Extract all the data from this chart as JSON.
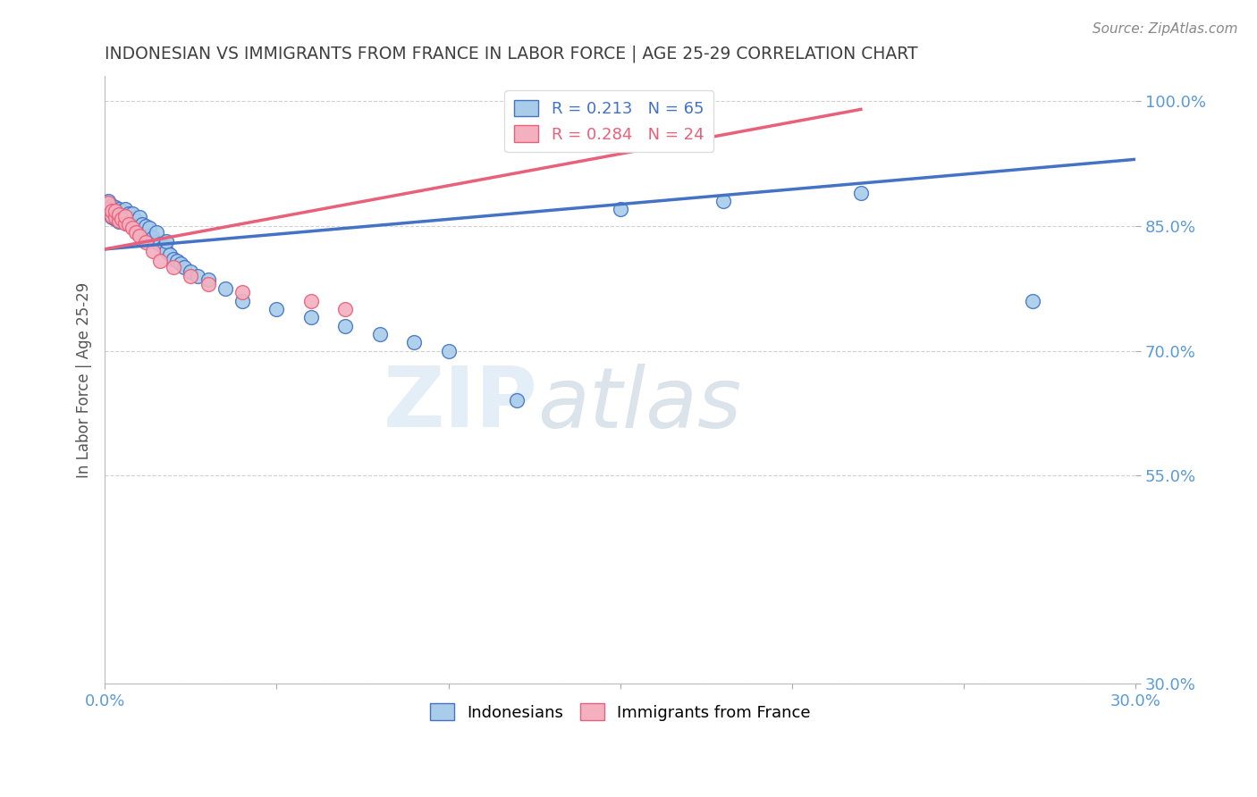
{
  "title": "INDONESIAN VS IMMIGRANTS FROM FRANCE IN LABOR FORCE | AGE 25-29 CORRELATION CHART",
  "source_text": "Source: ZipAtlas.com",
  "ylabel": "In Labor Force | Age 25-29",
  "xlim": [
    0.0,
    0.3
  ],
  "ylim": [
    0.3,
    1.03
  ],
  "xticks": [
    0.0,
    0.05,
    0.1,
    0.15,
    0.2,
    0.25,
    0.3
  ],
  "xticklabels": [
    "0.0%",
    "",
    "",
    "",
    "",
    "",
    "30.0%"
  ],
  "yticks": [
    0.3,
    0.55,
    0.7,
    0.85,
    1.0
  ],
  "yticklabels": [
    "30.0%",
    "55.0%",
    "70.0%",
    "85.0%",
    "100.0%"
  ],
  "legend_entries": [
    {
      "label": "R = 0.213   N = 65",
      "color": "#A8CCEA"
    },
    {
      "label": "R = 0.284   N = 24",
      "color": "#F4B0BF"
    }
  ],
  "bottom_legend": [
    "Indonesians",
    "Immigrants from France"
  ],
  "blue_fill": "#A8CCEA",
  "pink_fill": "#F4B0BF",
  "blue_edge": "#4472C4",
  "pink_edge": "#E8607A",
  "blue_line": "#4472C4",
  "pink_line": "#E8607A",
  "title_color": "#404040",
  "axis_label_color": "#5B9BD5",
  "watermark_color": "#D0E4F0",
  "blue_R": 0.213,
  "blue_N": 65,
  "pink_R": 0.284,
  "pink_N": 24,
  "blue_x": [
    0.001,
    0.001,
    0.002,
    0.002,
    0.002,
    0.002,
    0.003,
    0.003,
    0.003,
    0.003,
    0.003,
    0.004,
    0.004,
    0.004,
    0.005,
    0.005,
    0.005,
    0.006,
    0.006,
    0.006,
    0.007,
    0.007,
    0.007,
    0.008,
    0.008,
    0.008,
    0.009,
    0.009,
    0.01,
    0.01,
    0.01,
    0.011,
    0.011,
    0.012,
    0.012,
    0.013,
    0.013,
    0.014,
    0.015,
    0.015,
    0.016,
    0.017,
    0.018,
    0.018,
    0.019,
    0.02,
    0.021,
    0.022,
    0.023,
    0.025,
    0.027,
    0.03,
    0.035,
    0.04,
    0.05,
    0.06,
    0.07,
    0.08,
    0.09,
    0.1,
    0.12,
    0.15,
    0.18,
    0.22,
    0.27
  ],
  "blue_y": [
    0.872,
    0.88,
    0.86,
    0.862,
    0.87,
    0.875,
    0.858,
    0.86,
    0.865,
    0.868,
    0.872,
    0.855,
    0.862,
    0.87,
    0.856,
    0.862,
    0.868,
    0.855,
    0.862,
    0.87,
    0.852,
    0.858,
    0.865,
    0.85,
    0.858,
    0.865,
    0.848,
    0.856,
    0.845,
    0.852,
    0.86,
    0.845,
    0.852,
    0.84,
    0.85,
    0.838,
    0.848,
    0.836,
    0.83,
    0.842,
    0.828,
    0.825,
    0.82,
    0.832,
    0.815,
    0.81,
    0.808,
    0.805,
    0.8,
    0.795,
    0.79,
    0.785,
    0.775,
    0.76,
    0.75,
    0.74,
    0.73,
    0.72,
    0.71,
    0.7,
    0.64,
    0.87,
    0.88,
    0.89,
    0.76
  ],
  "pink_x": [
    0.001,
    0.001,
    0.002,
    0.002,
    0.003,
    0.003,
    0.004,
    0.004,
    0.005,
    0.006,
    0.006,
    0.007,
    0.008,
    0.009,
    0.01,
    0.012,
    0.014,
    0.016,
    0.02,
    0.025,
    0.03,
    0.04,
    0.06,
    0.07
  ],
  "pink_y": [
    0.87,
    0.878,
    0.862,
    0.868,
    0.86,
    0.868,
    0.856,
    0.864,
    0.858,
    0.853,
    0.862,
    0.852,
    0.848,
    0.842,
    0.838,
    0.83,
    0.82,
    0.808,
    0.8,
    0.79,
    0.78,
    0.77,
    0.76,
    0.75
  ],
  "blue_trend_x": [
    0.0,
    0.3
  ],
  "blue_trend_y": [
    0.822,
    0.93
  ],
  "pink_trend_x": [
    0.0,
    0.22
  ],
  "pink_trend_y": [
    0.822,
    0.99
  ]
}
